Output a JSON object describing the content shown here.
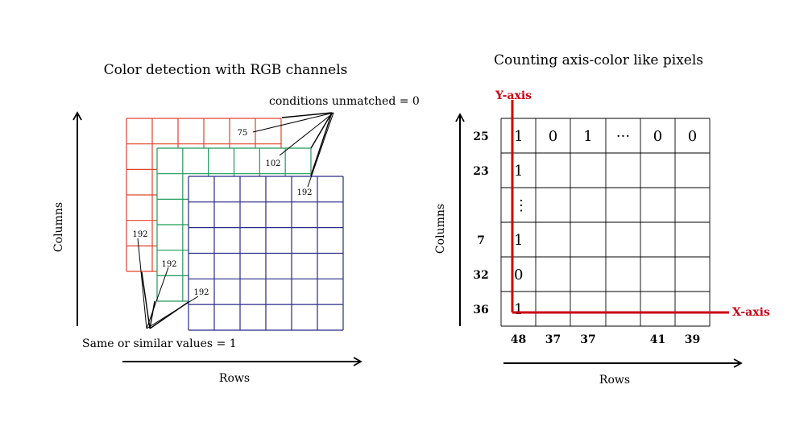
{
  "left": {
    "title": "Color detection with RGB channels",
    "y_axis_label": "Columns",
    "x_axis_label": "Rows",
    "callout_unmatched": "conditions unmatched = 0",
    "callout_same": "Same or similar values = 1",
    "unmatched_values": {
      "red": "75",
      "green": "102",
      "blue": "192"
    },
    "same_values": {
      "red": "192",
      "green": "192",
      "blue": "192"
    },
    "colors": {
      "red": "#e0442a",
      "green": "#1e9a5a",
      "blue": "#2a2a8a"
    }
  },
  "right": {
    "title": "Counting axis-color like pixels",
    "y_axis_label": "Columns",
    "x_axis_label": "Rows",
    "y_axis_tag": "Y-axis",
    "x_axis_tag": "X-axis",
    "axis_color": "#cc0011",
    "top_row": [
      "1",
      "0",
      "1",
      "···",
      "0",
      "0"
    ],
    "first_col": [
      "1",
      "1",
      "⋮",
      "1",
      "0",
      "1"
    ],
    "row_ticks": [
      "25",
      "23",
      "",
      "7",
      "32",
      "36"
    ],
    "col_ticks": [
      "48",
      "37",
      "37",
      "",
      "41",
      "39"
    ]
  }
}
